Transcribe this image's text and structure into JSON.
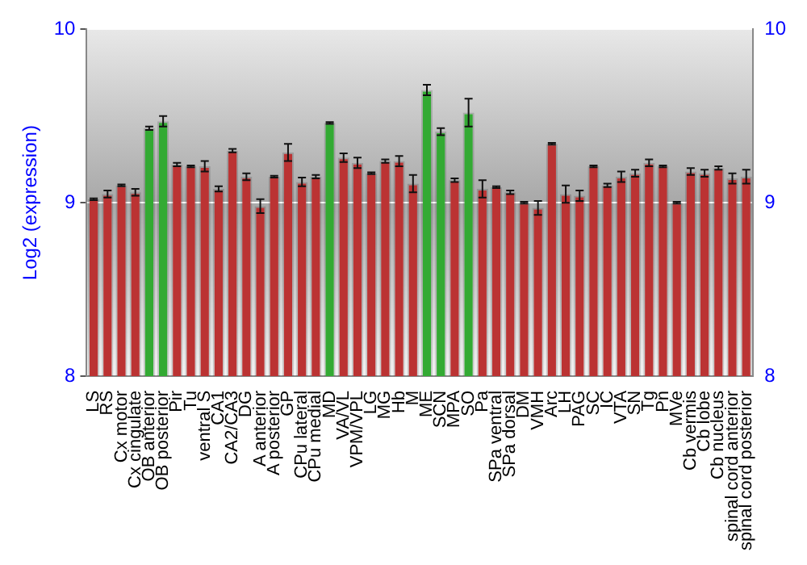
{
  "chart_data": {
    "type": "bar",
    "ylabel": "Log2 (expression)",
    "categories": [
      "LS",
      "RS",
      "Cx motor",
      "Cx cingulate",
      "OB anterior",
      "OB posterior",
      "Pir",
      "Tu",
      "ventral S",
      "CA1",
      "CA2/CA3",
      "DG",
      "A anterior",
      "A posterior",
      "GP",
      "CPu lateral",
      "CPu medial",
      "MD",
      "VA/VL",
      "VPM/VPL",
      "LG",
      "MG",
      "Hb",
      "M",
      "ME",
      "SCN",
      "MPA",
      "SO",
      "Pa",
      "SPa ventral",
      "SPa dorsal",
      "DM",
      "VMH",
      "Arc",
      "LH",
      "PAG",
      "SC",
      "IC",
      "VTA",
      "SN",
      "Tg",
      "Pn",
      "MVe",
      "Cb vermis",
      "Cb lobe",
      "Cb nucleus",
      "spinal cord anterior",
      "spinal cord posterior"
    ],
    "values": [
      9.02,
      9.05,
      9.1,
      9.06,
      9.43,
      9.47,
      9.22,
      9.21,
      9.21,
      9.08,
      9.3,
      9.15,
      8.98,
      9.15,
      9.29,
      9.12,
      9.15,
      9.46,
      9.26,
      9.23,
      9.17,
      9.24,
      9.24,
      9.11,
      9.65,
      9.41,
      9.13,
      9.52,
      9.08,
      9.09,
      9.06,
      9.0,
      8.97,
      9.34,
      9.05,
      9.04,
      9.21,
      9.1,
      9.15,
      9.17,
      9.23,
      9.21,
      9.0,
      9.18,
      9.17,
      9.2,
      9.14,
      9.15
    ],
    "errors": [
      0.005,
      0.02,
      0.005,
      0.02,
      0.01,
      0.03,
      0.01,
      0.005,
      0.03,
      0.015,
      0.01,
      0.02,
      0.04,
      0.005,
      0.05,
      0.025,
      0.01,
      0.005,
      0.025,
      0.03,
      0.005,
      0.01,
      0.03,
      0.05,
      0.03,
      0.02,
      0.01,
      0.08,
      0.05,
      0.005,
      0.01,
      0.005,
      0.04,
      0.005,
      0.05,
      0.03,
      0.005,
      0.01,
      0.03,
      0.02,
      0.02,
      0.005,
      0.005,
      0.02,
      0.02,
      0.01,
      0.03,
      0.04
    ],
    "colors": [
      "#bb3333",
      "#bb3333",
      "#bb3333",
      "#bb3333",
      "#33aa33",
      "#33aa33",
      "#bb3333",
      "#bb3333",
      "#bb3333",
      "#bb3333",
      "#bb3333",
      "#bb3333",
      "#bb3333",
      "#bb3333",
      "#bb3333",
      "#bb3333",
      "#bb3333",
      "#33aa33",
      "#bb3333",
      "#bb3333",
      "#bb3333",
      "#bb3333",
      "#bb3333",
      "#bb3333",
      "#33aa33",
      "#33aa33",
      "#bb3333",
      "#33aa33",
      "#bb3333",
      "#bb3333",
      "#bb3333",
      "#bb3333",
      "#bb3333",
      "#bb3333",
      "#bb3333",
      "#bb3333",
      "#bb3333",
      "#bb3333",
      "#bb3333",
      "#bb3333",
      "#bb3333",
      "#bb3333",
      "#bb3333",
      "#bb3333",
      "#bb3333",
      "#bb3333",
      "#bb3333",
      "#bb3333"
    ],
    "ylim": [
      8,
      10
    ],
    "yticks": [
      8,
      9,
      10
    ],
    "y2lim": [
      8,
      10
    ],
    "y2ticks": [
      8,
      9,
      10
    ],
    "grid": "y",
    "legend": false
  }
}
